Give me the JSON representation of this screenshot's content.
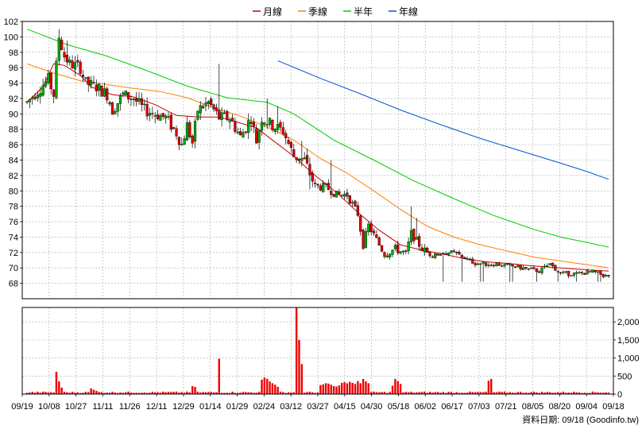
{
  "legend": [
    {
      "label": "月線",
      "color": "#cc0000"
    },
    {
      "label": "季線",
      "color": "#ff7f00"
    },
    {
      "label": "半年",
      "color": "#00cc00"
    },
    {
      "label": "年線",
      "color": "#0055cc"
    }
  ],
  "footer": "資料日期: 09/18  (Goodinfo.tw)",
  "colors": {
    "up": "#00aa00",
    "down": "#dd0000",
    "volume": "#ee0000",
    "grid": "#aaaaaa",
    "border": "#000000"
  },
  "chart_data": [
    {
      "type": "candlestick",
      "ylim": [
        66,
        102
      ],
      "ytick_labels": [
        "68",
        "70",
        "72",
        "74",
        "76",
        "78",
        "80",
        "82",
        "84",
        "86",
        "88",
        "90",
        "92",
        "94",
        "96",
        "98",
        "100",
        "102"
      ],
      "xtick_labels": [
        "09/19",
        "10/08",
        "10/27",
        "11/11",
        "11/26",
        "12/11",
        "12/29",
        "01/14",
        "01/29",
        "02/24",
        "03/12",
        "03/27",
        "04/15",
        "04/30",
        "05/18",
        "06/02",
        "06/17",
        "07/03",
        "07/21",
        "08/05",
        "08/20",
        "09/04",
        "09/18"
      ],
      "grid": true,
      "legend_placement": "top-center",
      "moving_averages": [
        {
          "name": "月線",
          "key": "ma_m",
          "points": [
            [
              0,
              91.5
            ],
            [
              6,
              93.5
            ],
            [
              10,
              96.5
            ],
            [
              14,
              96.3
            ],
            [
              20,
              95.0
            ],
            [
              24,
              93.5
            ],
            [
              32,
              92.5
            ],
            [
              40,
              92.2
            ],
            [
              48,
              91.2
            ],
            [
              56,
              89.8
            ],
            [
              64,
              89.6
            ],
            [
              72,
              89.6
            ],
            [
              78,
              89.0
            ],
            [
              86,
              88.2
            ],
            [
              92,
              86.6
            ],
            [
              100,
              84.5
            ],
            [
              108,
              82.0
            ],
            [
              116,
              79.8
            ],
            [
              124,
              77.2
            ],
            [
              132,
              74.9
            ],
            [
              140,
              73.0
            ],
            [
              148,
              72.3
            ],
            [
              156,
              71.8
            ],
            [
              164,
              71.2
            ],
            [
              172,
              70.8
            ],
            [
              180,
              70.6
            ],
            [
              188,
              70.3
            ],
            [
              196,
              70.1
            ],
            [
              204,
              69.9
            ],
            [
              212,
              69.7
            ],
            [
              218,
              69.6
            ]
          ]
        },
        {
          "name": "季線",
          "key": "ma_q",
          "points": [
            [
              0,
              96.5
            ],
            [
              10,
              95.3
            ],
            [
              20,
              94.3
            ],
            [
              30,
              93.8
            ],
            [
              40,
              93.3
            ],
            [
              50,
              92.9
            ],
            [
              60,
              92.1
            ],
            [
              70,
              90.8
            ],
            [
              80,
              89.7
            ],
            [
              90,
              88.3
            ],
            [
              100,
              86.6
            ],
            [
              110,
              84.2
            ],
            [
              120,
              82.3
            ],
            [
              130,
              80.0
            ],
            [
              140,
              77.6
            ],
            [
              150,
              75.4
            ],
            [
              160,
              74.0
            ],
            [
              170,
              73.0
            ],
            [
              180,
              72.2
            ],
            [
              190,
              71.4
            ],
            [
              200,
              70.9
            ],
            [
              210,
              70.4
            ],
            [
              218,
              70.0
            ]
          ]
        },
        {
          "name": "半年",
          "key": "ma_h",
          "points": [
            [
              0,
              101.0
            ],
            [
              15,
              99.0
            ],
            [
              30,
              97.5
            ],
            [
              45,
              95.6
            ],
            [
              60,
              93.6
            ],
            [
              75,
              92.1
            ],
            [
              90,
              91.5
            ],
            [
              100,
              90.0
            ],
            [
              115,
              86.6
            ],
            [
              130,
              84.0
            ],
            [
              145,
              81.3
            ],
            [
              160,
              79.0
            ],
            [
              175,
              76.8
            ],
            [
              190,
              75.0
            ],
            [
              200,
              74.0
            ],
            [
              210,
              73.3
            ],
            [
              218,
              72.7
            ]
          ]
        },
        {
          "name": "年線",
          "key": "ma_y",
          "points": [
            [
              94,
              96.9
            ],
            [
              110,
              94.6
            ],
            [
              125,
              92.6
            ],
            [
              140,
              90.5
            ],
            [
              155,
              88.6
            ],
            [
              170,
              86.8
            ],
            [
              185,
              85.2
            ],
            [
              200,
              83.6
            ],
            [
              210,
              82.5
            ],
            [
              218,
              81.5
            ]
          ]
        }
      ],
      "candles_note": "OHLC generated from key price points (open/close/high/low per session)",
      "price_path": [
        [
          0,
          91.5
        ],
        [
          4,
          93
        ],
        [
          8,
          94.5
        ],
        [
          10,
          92.5
        ],
        [
          12,
          100
        ],
        [
          14,
          97.5
        ],
        [
          16,
          96.5
        ],
        [
          20,
          96
        ],
        [
          22,
          94
        ],
        [
          26,
          93.5
        ],
        [
          30,
          92.5
        ],
        [
          32,
          90.5
        ],
        [
          36,
          92.5
        ],
        [
          40,
          92
        ],
        [
          44,
          90.5
        ],
        [
          48,
          90
        ],
        [
          52,
          89.5
        ],
        [
          56,
          87.5
        ],
        [
          58,
          86
        ],
        [
          60,
          88.5
        ],
        [
          62,
          86.2
        ],
        [
          64,
          90.5
        ],
        [
          68,
          91.5
        ],
        [
          72,
          89.5
        ],
        [
          76,
          89.5
        ],
        [
          80,
          87
        ],
        [
          84,
          89.5
        ],
        [
          86,
          86.5
        ],
        [
          88,
          89.5
        ],
        [
          92,
          88.5
        ],
        [
          96,
          87.8
        ],
        [
          100,
          84.5
        ],
        [
          104,
          84
        ],
        [
          108,
          80.5
        ],
        [
          112,
          80.5
        ],
        [
          116,
          79.5
        ],
        [
          120,
          79.5
        ],
        [
          124,
          77
        ],
        [
          126,
          73
        ],
        [
          128,
          75.5
        ],
        [
          132,
          73
        ],
        [
          134,
          71.8
        ],
        [
          138,
          72.5
        ],
        [
          142,
          71.8
        ],
        [
          144,
          74.5
        ],
        [
          148,
          72.5
        ],
        [
          152,
          71.5
        ],
        [
          156,
          72
        ],
        [
          160,
          72
        ],
        [
          164,
          71.3
        ],
        [
          168,
          70.6
        ],
        [
          172,
          70.5
        ],
        [
          176,
          70.5
        ],
        [
          180,
          70.3
        ],
        [
          184,
          70.1
        ],
        [
          188,
          69.8
        ],
        [
          192,
          69.6
        ],
        [
          196,
          70.5
        ],
        [
          200,
          69.3
        ],
        [
          204,
          69.2
        ],
        [
          208,
          69.3
        ],
        [
          212,
          69.5
        ],
        [
          218,
          68.8
        ]
      ],
      "spikes": [
        [
          12,
          101
        ],
        [
          13,
          99.5
        ],
        [
          15,
          99.5
        ],
        [
          72,
          96.5
        ],
        [
          90,
          92
        ],
        [
          94,
          91
        ],
        [
          103,
          86.5
        ],
        [
          106,
          80.5
        ],
        [
          114,
          84
        ],
        [
          128,
          75
        ],
        [
          144,
          78
        ],
        [
          146,
          76.5
        ]
      ]
    },
    {
      "type": "bar",
      "name": "volume",
      "ylim": [
        0,
        2400
      ],
      "ytick_labels": [
        "0",
        "500",
        "1,000",
        "1,500",
        "2,000"
      ],
      "spikes": [
        [
          11,
          620
        ],
        [
          12,
          350
        ],
        [
          13,
          180
        ],
        [
          24,
          160
        ],
        [
          25,
          120
        ],
        [
          26,
          90
        ],
        [
          62,
          220
        ],
        [
          63,
          200
        ],
        [
          72,
          980
        ],
        [
          88,
          400
        ],
        [
          89,
          460
        ],
        [
          90,
          420
        ],
        [
          91,
          350
        ],
        [
          92,
          300
        ],
        [
          93,
          260
        ],
        [
          94,
          200
        ],
        [
          101,
          650
        ],
        [
          102,
          1050
        ],
        [
          103,
          830
        ],
        [
          110,
          250
        ],
        [
          111,
          270
        ],
        [
          112,
          300
        ],
        [
          113,
          290
        ],
        [
          114,
          260
        ],
        [
          115,
          220
        ],
        [
          116,
          210
        ],
        [
          117,
          240
        ],
        [
          118,
          310
        ],
        [
          119,
          330
        ],
        [
          120,
          300
        ],
        [
          121,
          340
        ],
        [
          122,
          310
        ],
        [
          123,
          280
        ],
        [
          124,
          360
        ],
        [
          125,
          300
        ],
        [
          126,
          420
        ],
        [
          127,
          350
        ],
        [
          128,
          300
        ],
        [
          137,
          230
        ],
        [
          138,
          420
        ],
        [
          139,
          360
        ],
        [
          140,
          280
        ],
        [
          173,
          370
        ],
        [
          174,
          420
        ]
      ],
      "big_spikes": [
        [
          101,
          2400
        ],
        [
          102,
          1500
        ]
      ],
      "base_level": 30
    }
  ]
}
